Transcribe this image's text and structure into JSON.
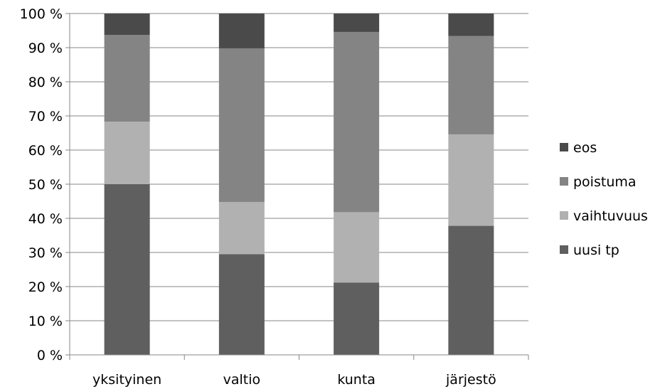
{
  "chart_data": {
    "type": "bar",
    "stacked": true,
    "percent": true,
    "categories": [
      "yksityinen",
      "valtio",
      "kunta",
      "järjestö"
    ],
    "series": [
      {
        "name": "uusi tp",
        "color": "#5f5f5f",
        "values": [
          50.0,
          29.5,
          21.2,
          37.8
        ]
      },
      {
        "name": "vaihtuvuus",
        "color": "#b1b1b1",
        "values": [
          18.3,
          15.3,
          20.6,
          26.8
        ]
      },
      {
        "name": "poistuma",
        "color": "#848484",
        "values": [
          25.4,
          45.0,
          52.8,
          28.8
        ]
      },
      {
        "name": "eos",
        "color": "#4a4a4a",
        "values": [
          6.3,
          10.2,
          5.4,
          6.6
        ]
      }
    ],
    "ylim": [
      0,
      100
    ],
    "yticks": [
      0,
      10,
      20,
      30,
      40,
      50,
      60,
      70,
      80,
      90,
      100
    ],
    "ytick_labels": [
      "0 %",
      "10 %",
      "20 %",
      "30 %",
      "40 %",
      "50 %",
      "60 %",
      "70 %",
      "80 %",
      "90 %",
      "100 %"
    ],
    "grid": true,
    "legend_position": "right",
    "legend_order": [
      "eos",
      "poistuma",
      "vaihtuvuus",
      "uusi tp"
    ],
    "title": "",
    "xlabel": "",
    "ylabel": ""
  }
}
